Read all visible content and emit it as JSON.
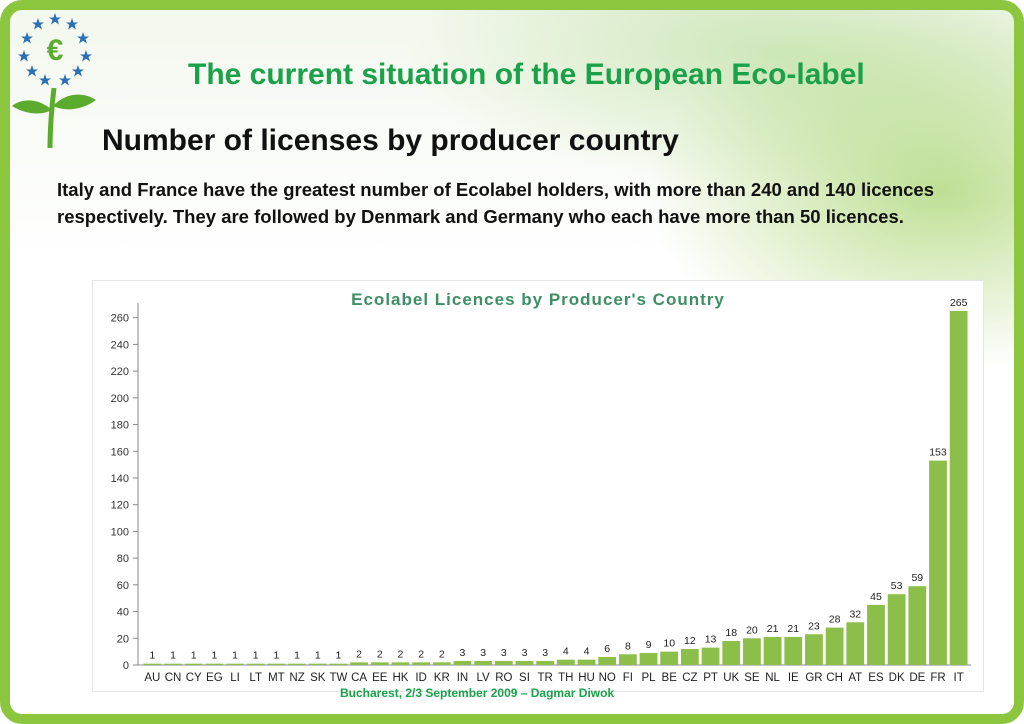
{
  "header": {
    "title": "The  current situation of the European Eco-label",
    "subtitle": "Number of licenses by producer country",
    "description": "Italy and France have the greatest number of Ecolabel holders, with more than 240 and 140 licences respectively. They are followed by Denmark and Germany who each have more than 50 licences."
  },
  "logo": {
    "icon": "eu-ecolabel-flower-icon",
    "letter": "€"
  },
  "footer": {
    "text": "Bucharest, 2/3 September 2009 – Dagmar Diwok"
  },
  "colors": {
    "title": "#1aa14a",
    "bar": "#8cbf4a",
    "chart_title": "#3e8f66",
    "frame": "#8cc63f"
  },
  "chart_data": {
    "type": "bar",
    "title": "Ecolabel Licences by Producer's Country",
    "xlabel": "",
    "ylabel": "",
    "ylim": [
      0,
      260
    ],
    "yticks": [
      0,
      20,
      40,
      60,
      80,
      100,
      120,
      140,
      160,
      180,
      200,
      220,
      240,
      260
    ],
    "grid": false,
    "categories": [
      "AU",
      "CN",
      "CY",
      "EG",
      "LI",
      "LT",
      "MT",
      "NZ",
      "SK",
      "TW",
      "CA",
      "EE",
      "HK",
      "ID",
      "KR",
      "IN",
      "LV",
      "RO",
      "SI",
      "TR",
      "TH",
      "HU",
      "NO",
      "FI",
      "PL",
      "BE",
      "CZ",
      "PT",
      "UK",
      "SE",
      "NL",
      "IE",
      "GR",
      "CH",
      "AT",
      "ES",
      "DK",
      "DE",
      "FR",
      "IT"
    ],
    "values": [
      1,
      1,
      1,
      1,
      1,
      1,
      1,
      1,
      1,
      1,
      2,
      2,
      2,
      2,
      2,
      3,
      3,
      3,
      3,
      3,
      4,
      4,
      6,
      8,
      9,
      10,
      12,
      13,
      18,
      20,
      21,
      21,
      23,
      28,
      32,
      45,
      53,
      59,
      153,
      265
    ]
  }
}
